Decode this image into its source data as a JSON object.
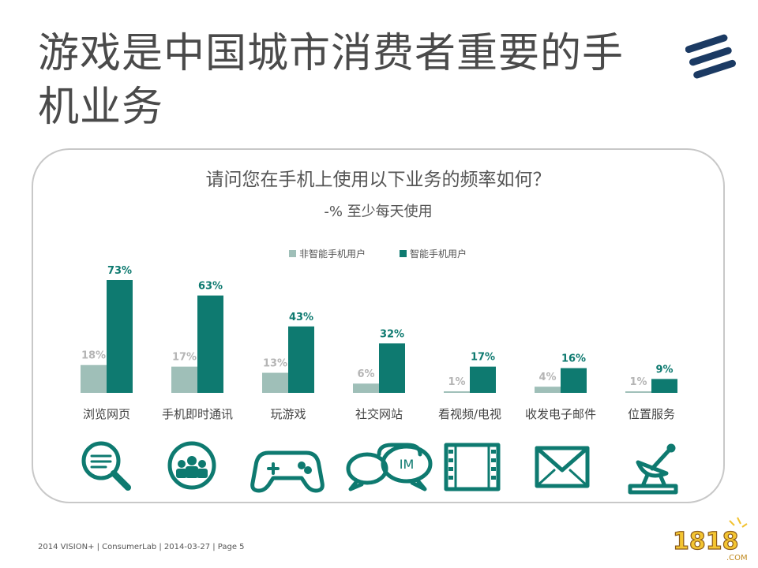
{
  "slide": {
    "title": "游戏是中国城市消费者重要的手机业务",
    "footer": "2014 VISION+  |  ConsumerLab  |  2014-03-27  |  Page 5"
  },
  "chart_data": {
    "type": "bar",
    "title": "请问您在手机上使用以下业务的频率如何？",
    "subtitle": "-% 至少每天使用",
    "categories": [
      "浏览网页",
      "手机即时通讯",
      "玩游戏",
      "社交网站",
      "看视频/电视",
      "收发电子邮件",
      "位置服务"
    ],
    "series": [
      {
        "name": "非智能手机用户",
        "values": [
          18,
          17,
          13,
          6,
          1,
          4,
          1
        ],
        "labels": [
          "18%",
          "17%",
          "13%",
          "6%",
          "1%",
          "4%",
          "1%"
        ],
        "color": "#9fbfb8",
        "label_color": "#b5b5b5"
      },
      {
        "name": "智能手机用户",
        "values": [
          73,
          63,
          43,
          32,
          17,
          16,
          9
        ],
        "labels": [
          "73%",
          "63%",
          "43%",
          "32%",
          "17%",
          "16%",
          "9%"
        ],
        "color": "#0e7a70",
        "label_color": "#0e7a70"
      }
    ],
    "ylim": [
      0,
      73
    ],
    "legend_position": "top-center",
    "grid": false
  },
  "icons": {
    "items": [
      "magnifier-icon",
      "people-group-icon",
      "gamepad-icon",
      "chat-bubbles-icon",
      "film-strip-icon",
      "envelope-icon",
      "satellite-dish-icon"
    ],
    "chat_text": "IM",
    "color": "#0e7a70"
  },
  "watermark": {
    "text": "1818",
    "sub": ".COM"
  }
}
